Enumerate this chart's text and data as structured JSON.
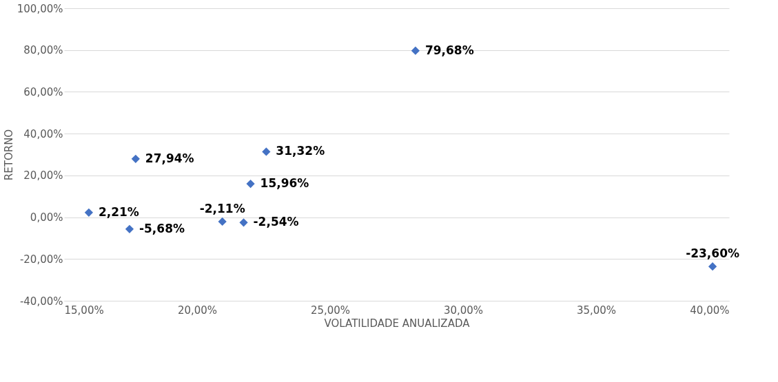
{
  "chart_data": {
    "type": "scatter",
    "xlabel": "VOLATILIDADE ANUALIZADA",
    "ylabel": "RETORNO",
    "x": [
      15.93,
      17.46,
      17.69,
      20.95,
      21.75,
      22.01,
      22.6,
      28.21,
      39.38
    ],
    "series": [
      {
        "color": "#4472c4",
        "values": [
          2.21,
          -5.68,
          27.94,
          -2.11,
          -2.54,
          15.96,
          31.32,
          79.68,
          -23.6
        ]
      }
    ],
    "value_labels": [
      "2,21%",
      "-5,68%",
      "27,94%",
      "-2,11%",
      "-2,54%",
      "15,96%",
      "31,32%",
      "79,68%",
      "-23,60%"
    ],
    "xlim": [
      15,
      40
    ],
    "xticks": [
      {
        "value": 15,
        "label": "15,00%"
      },
      {
        "value": 20,
        "label": "20,00%"
      },
      {
        "value": 25,
        "label": "25,00%"
      },
      {
        "value": 30,
        "label": "30,00%"
      },
      {
        "value": 35,
        "label": "35,00%"
      },
      {
        "value": 40,
        "label": "40,00%"
      }
    ],
    "ylim": [
      -40,
      100
    ],
    "yticks": [
      {
        "value": -40,
        "label": "-40,00%"
      },
      {
        "value": -20,
        "label": "-20,00%"
      },
      {
        "value": 0,
        "label": "0,00%"
      },
      {
        "value": 20,
        "label": "20,00%"
      },
      {
        "value": 40,
        "label": "40,00%"
      },
      {
        "value": 60,
        "label": "60,00%"
      },
      {
        "value": 80,
        "label": "80,00%"
      },
      {
        "value": 100,
        "label": "100,00%"
      }
    ],
    "grid": "y",
    "marker": "diamond"
  }
}
